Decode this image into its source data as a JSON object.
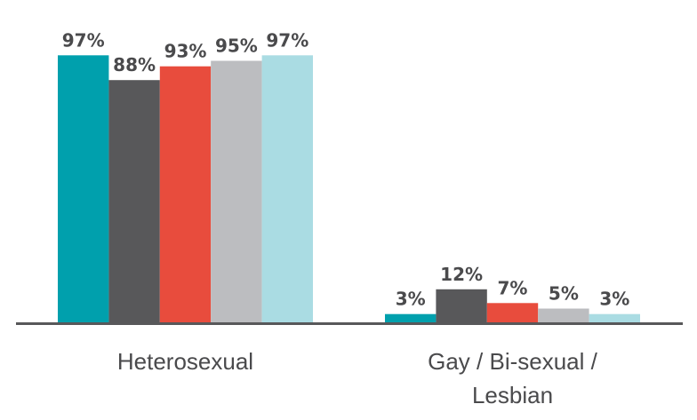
{
  "chart_data": {
    "type": "bar",
    "categories": [
      "Heterosexual",
      "Gay / Bi-sexual / Lesbian"
    ],
    "series": [
      {
        "values": [
          97,
          3
        ],
        "labels": [
          "97%",
          "3%"
        ],
        "color": "#00a0ad"
      },
      {
        "values": [
          88,
          12
        ],
        "labels": [
          "88%",
          "12%"
        ],
        "color": "#58585a"
      },
      {
        "values": [
          93,
          7
        ],
        "labels": [
          "93%",
          "7%"
        ],
        "color": "#e84c3d"
      },
      {
        "values": [
          95,
          5
        ],
        "labels": [
          "95%",
          "5%"
        ],
        "color": "#bcbdc0"
      },
      {
        "values": [
          97,
          3
        ],
        "labels": [
          "97%",
          "3%"
        ],
        "color": "#aadce3"
      }
    ],
    "category_label_lines": [
      [
        "Heterosexual"
      ],
      [
        "Gay / Bi-sexual /",
        "Lesbian"
      ]
    ],
    "ylim": [
      0,
      100
    ],
    "axis_color": "#58585a",
    "label_color": "#4a4a4c",
    "legend": "none",
    "grid": false
  }
}
